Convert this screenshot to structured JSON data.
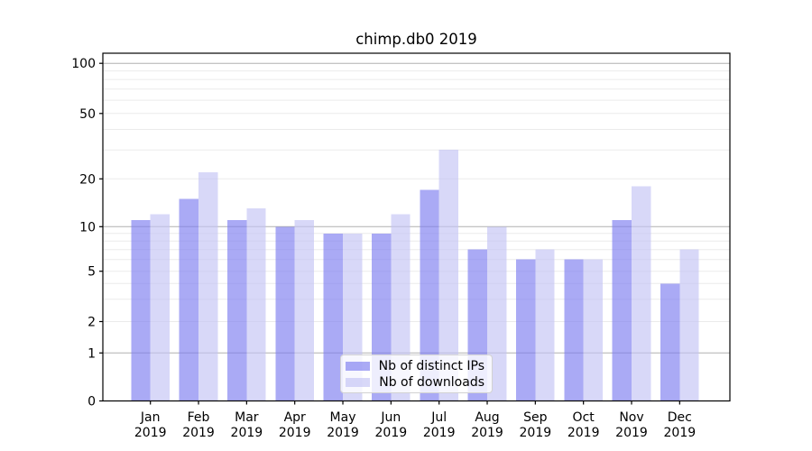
{
  "title": "chimp.db0 2019",
  "colors": {
    "distinct_ips": "#7c7cf0",
    "downloads": "#c3c3f4",
    "bar_alpha": 0.65,
    "grid_major": "#b0b0b0",
    "grid_minor": "#ebebeb",
    "spine": "#000000",
    "tick_label": "#000000",
    "legend_border": "#d2d2d2"
  },
  "chart_data": {
    "type": "bar",
    "title": "chimp.db0 2019",
    "categories": [
      "Jan",
      "Feb",
      "Mar",
      "Apr",
      "May",
      "Jun",
      "Jul",
      "Aug",
      "Sep",
      "Oct",
      "Nov",
      "Dec"
    ],
    "category_year": "2019",
    "series": [
      {
        "name": "Nb of distinct IPs",
        "color": "#7c7cf0",
        "values": [
          11,
          15,
          11,
          10,
          9,
          9,
          17,
          7,
          6,
          6,
          11,
          4
        ]
      },
      {
        "name": "Nb of downloads",
        "color": "#c3c3f4",
        "values": [
          12,
          22,
          13,
          11,
          9,
          12,
          30,
          10,
          7,
          6,
          18,
          7
        ]
      }
    ],
    "xlabel": "",
    "ylabel": "",
    "yscale": "log1p",
    "ylim": [
      0,
      114
    ],
    "yticks_labeled": [
      0,
      1,
      2,
      5,
      10,
      20,
      50,
      100
    ],
    "gridlines_major": [
      1,
      10,
      100
    ],
    "gridlines_minor": [
      2,
      3,
      4,
      5,
      6,
      7,
      8,
      9,
      20,
      30,
      40,
      50,
      60,
      70,
      80,
      90
    ],
    "grid": true,
    "legend_position": "lower center"
  }
}
